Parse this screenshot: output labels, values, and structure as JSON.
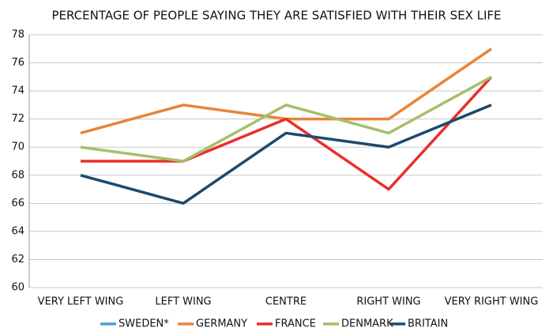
{
  "chart_data": {
    "type": "line",
    "title": "PERCENTAGE OF PEOPLE SAYING THEY ARE SATISFIED WITH THEIR SEX LIFE",
    "categories": [
      "VERY LEFT WING",
      "LEFT WING",
      "CENTRE",
      "RIGHT WING",
      "VERY RIGHT WING"
    ],
    "series": [
      {
        "name": "SWEDEN*",
        "color": "#4a9fd8",
        "values": [
          null,
          null,
          null,
          null,
          null
        ]
      },
      {
        "name": "GERMANY",
        "color": "#e8843a",
        "values": [
          71,
          73,
          72,
          72,
          77
        ]
      },
      {
        "name": "FRANCE",
        "color": "#e8302a",
        "values": [
          69,
          69,
          72,
          67,
          75
        ]
      },
      {
        "name": "DENMARK",
        "color": "#a4c06a",
        "values": [
          70,
          69,
          73,
          71,
          75
        ]
      },
      {
        "name": "BRITAIN",
        "color": "#1d4a6e",
        "values": [
          68,
          66,
          71,
          70,
          73
        ]
      }
    ],
    "ylim": [
      60,
      78
    ],
    "yticks": [
      60,
      62,
      64,
      66,
      68,
      70,
      72,
      74,
      76,
      78
    ],
    "grid": true,
    "legend": "bottom"
  }
}
